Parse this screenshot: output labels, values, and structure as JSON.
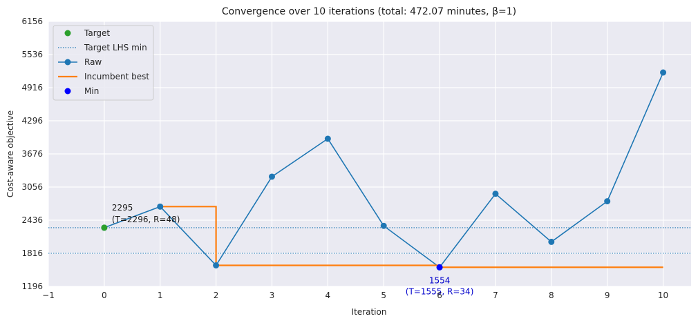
{
  "chart_data": {
    "type": "line",
    "title": "Convergence over 10 iterations (total: 472.07 minutes, β=1)",
    "xlabel": "Iteration",
    "ylabel": "Cost-aware objective",
    "xlim": [
      -1,
      10.5
    ],
    "ylim": [
      1196,
      6156
    ],
    "xticks": [
      -1,
      0,
      1,
      2,
      3,
      4,
      5,
      6,
      7,
      8,
      9,
      10
    ],
    "xtick_labels": [
      "−1",
      "0",
      "1",
      "2",
      "3",
      "4",
      "5",
      "6",
      "7",
      "8",
      "9",
      "10"
    ],
    "yticks": [
      1196,
      1816,
      2436,
      3056,
      3676,
      4296,
      4916,
      5536,
      6156
    ],
    "grid": true,
    "legend_position": "upper-left",
    "legend": [
      {
        "label": "Target",
        "kind": "marker",
        "color": "#2ca02c"
      },
      {
        "label": "Target LHS min",
        "kind": "dotted",
        "color": "#1f77b4"
      },
      {
        "label": "Raw",
        "kind": "line-marker",
        "color": "#1f77b4"
      },
      {
        "label": "Incumbent best",
        "kind": "line",
        "color": "#ff7f0e"
      },
      {
        "label": "Min",
        "kind": "marker",
        "color": "#0000ff"
      }
    ],
    "target": {
      "x": 0,
      "y": 2295,
      "color": "#2ca02c"
    },
    "target_line": {
      "y": 2295,
      "color": "#1f77b4"
    },
    "target_lhs_min": {
      "y": 1816,
      "color": "#1f77b4"
    },
    "series": [
      {
        "name": "Raw",
        "color": "#1f77b4",
        "x": [
          0,
          1,
          2,
          3,
          4,
          5,
          6,
          7,
          8,
          9,
          10
        ],
        "y": [
          2295,
          2690,
          1590,
          3250,
          3960,
          2330,
          1554,
          2930,
          2030,
          2790,
          5200
        ]
      }
    ],
    "incumbent_best": {
      "name": "Incumbent best",
      "color": "#ff7f0e",
      "steps": [
        [
          1,
          2690
        ],
        [
          2,
          2690
        ],
        [
          2,
          1590
        ],
        [
          6,
          1590
        ],
        [
          6,
          1554
        ],
        [
          10,
          1554
        ]
      ]
    },
    "min_point": {
      "x": 6,
      "y": 1554,
      "color": "#0000ff"
    },
    "annotations": [
      {
        "lines": [
          "2295",
          "(T=2296, R=48)"
        ],
        "x": 0,
        "y": 2295,
        "color": "#1a1a1a"
      },
      {
        "lines": [
          "1554",
          "(T=1555, R=34)"
        ],
        "x": 6,
        "y": 1554,
        "color": "#0000cc"
      }
    ],
    "colors": {
      "plot_bg": "#eaeaf2",
      "grid": "#ffffff"
    }
  }
}
